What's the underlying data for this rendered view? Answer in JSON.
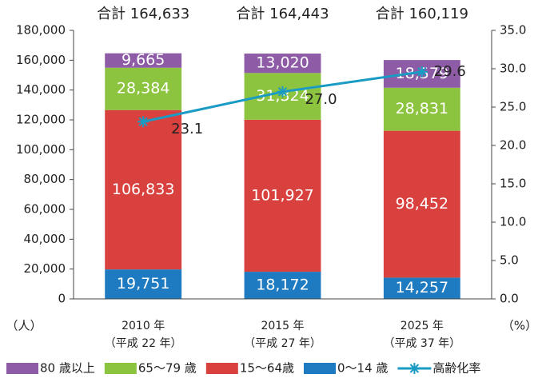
{
  "chart_data": {
    "type": "stacked_bar_line",
    "categories": [
      "2010 年",
      "2015 年",
      "2025 年"
    ],
    "category_notes": [
      "（平成 22 年）",
      "（平成 27 年）",
      "（平成 37 年）"
    ],
    "y_axis_label": "（人）",
    "y2_axis_label": "（%）",
    "totals": {
      "values": [
        164633,
        164443,
        160119
      ],
      "value_labels": [
        "合計 164,633",
        "合計 164,443",
        "合計 160,119"
      ]
    },
    "series": [
      {
        "name": "80 歳以上",
        "color": "#8e5ba6",
        "values": [
          9665,
          13020,
          18579
        ],
        "value_labels": [
          "9,665",
          "13,020",
          "18,579"
        ]
      },
      {
        "name": "65～79 歳",
        "color": "#8dc43f",
        "values": [
          28384,
          31324,
          28831
        ],
        "value_labels": [
          "28,384",
          "31,324",
          "28,831"
        ]
      },
      {
        "name": "15～64歳",
        "color": "#d9413f",
        "values": [
          106833,
          101927,
          98452
        ],
        "value_labels": [
          "106,833",
          "101,927",
          "98,452"
        ]
      },
      {
        "name": "0～14 歳",
        "color": "#1f7bc1",
        "values": [
          19751,
          18172,
          14257
        ],
        "value_labels": [
          "19,751",
          "18,172",
          "14,257"
        ]
      },
      {
        "name": "高齢化率",
        "color": "#1a9bc4",
        "axis": "y2",
        "type": "line",
        "values": [
          23.1,
          27.0,
          29.6
        ],
        "value_labels": [
          "23.1",
          "27.0",
          "29.6"
        ]
      }
    ],
    "ylim": [
      0,
      180000
    ],
    "yticks": [
      0,
      {
        "value": 20000,
        "label": "20,000"
      },
      {
        "value": 40000,
        "label": "40,000"
      },
      {
        "value": 60000,
        "label": "60,000"
      },
      {
        "value": 80000,
        "label": "80,000"
      },
      {
        "value": 100000,
        "label": "100,000"
      },
      {
        "value": 120000,
        "label": "120,000"
      },
      {
        "value": 140000,
        "label": "140,000"
      },
      {
        "value": 160000,
        "label": "160,000"
      },
      {
        "value": 180000,
        "label": "180,000"
      }
    ],
    "y2lim": [
      0,
      35
    ],
    "y2ticks": [
      {
        "value": 0,
        "label": "0.0"
      },
      {
        "value": 5,
        "label": "5.0"
      },
      {
        "value": 10,
        "label": "10.0"
      },
      {
        "value": 15,
        "label": "15.0"
      },
      {
        "value": 20,
        "label": "20.0"
      },
      {
        "value": 25,
        "label": "25.0"
      },
      {
        "value": 30,
        "label": "30.0"
      },
      {
        "value": 35,
        "label": "35.0"
      }
    ]
  }
}
